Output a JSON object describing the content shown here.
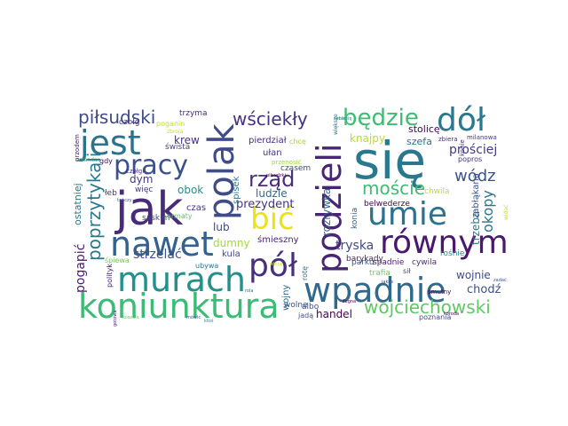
{
  "words": {
    "sie": {
      "text": "się",
      "color": "#2a788e"
    },
    "jak": {
      "text": "jak",
      "color": "#472c7a"
    },
    "jest": {
      "text": "jest",
      "color": "#2c728e"
    },
    "nawet": {
      "text": "nawet",
      "color": "#34618d"
    },
    "koniunktura": {
      "text": "koniunktura",
      "color": "#3bbb75"
    },
    "murach": {
      "text": "murach",
      "color": "#21918c"
    },
    "wpadnie": {
      "text": "wpadnie",
      "color": "#31688e"
    },
    "umie": {
      "text": "umie",
      "color": "#2c728e"
    },
    "rownym": {
      "text": "równym",
      "color": "#4a186c"
    },
    "dol": {
      "text": "dół",
      "color": "#2a788e"
    },
    "pol": {
      "text": "pół",
      "color": "#472f7d"
    },
    "polak": {
      "text": "polak",
      "color": "#3e4c8a"
    },
    "podzieli": {
      "text": "podzieli",
      "color": "#482475"
    },
    "bic": {
      "text": "bić",
      "color": "#e8e419"
    },
    "pracy": {
      "text": "pracy",
      "color": "#3b518b"
    },
    "bedzie": {
      "text": "będzie",
      "color": "#3fbc73"
    },
    "pilsudski": {
      "text": "piłsudski",
      "color": "#3e4a89"
    },
    "wsciekly": {
      "text": "wściekły",
      "color": "#46327e"
    },
    "rzad": {
      "text": "rząd",
      "color": "#472d7b"
    },
    "wojciechowski": {
      "text": "wojciechowski",
      "color": "#5ec962"
    },
    "poprzytykali": {
      "text": "poprzytykali",
      "color": "#2a788e"
    },
    "moscie": {
      "text": "moście",
      "color": "#3fbc73"
    },
    "wodz": {
      "text": "wódz",
      "color": "#3b528b"
    },
    "prosciej": {
      "text": "prościej",
      "color": "#443983"
    },
    "strzelac": {
      "text": "strzelać",
      "color": "#3b528b"
    },
    "prezydent": {
      "text": "prezydent",
      "color": "#46337f"
    },
    "rozrywka": {
      "text": "rozrywka",
      "color": "#31688e"
    },
    "tryska": {
      "text": "tryska",
      "color": "#3e4a89"
    },
    "handel": {
      "text": "handel",
      "color": "#440154"
    },
    "chodz": {
      "text": "chodź",
      "color": "#3b528b"
    },
    "wojnie": {
      "text": "wojnie",
      "color": "#3e4c8a"
    },
    "okopy": {
      "text": "okopy",
      "color": "#2c728e"
    },
    "pogapic": {
      "text": "pogapić",
      "color": "#481a6c"
    },
    "krew": {
      "text": "krew",
      "color": "#46327e"
    },
    "obok": {
      "text": "obok",
      "color": "#21918c"
    },
    "dym": {
      "text": "dym",
      "color": "#443983"
    },
    "lub": {
      "text": "lub",
      "color": "#3e4a89"
    },
    "dumny": {
      "text": "dumny",
      "color": "#a0da39"
    },
    "ludzie": {
      "text": "ludzie",
      "color": "#31688e"
    },
    "trzeba": {
      "text": "trzeba",
      "color": "#2a788e"
    },
    "ostatniej": {
      "text": "ostatniej",
      "color": "#2a788e"
    },
    "knajpy": {
      "text": "knajpy",
      "color": "#b5de2b"
    },
    "szefa": {
      "text": "szefa",
      "color": "#2c728e"
    },
    "stolice": {
      "text": "stolicę",
      "color": "#440154"
    },
    "pierdzial": {
      "text": "pierdział",
      "color": "#472d7b"
    },
    "ulan": {
      "text": "ułan",
      "color": "#46327e"
    },
    "czas": {
      "text": "czas",
      "color": "#46327e"
    },
    "spisek": {
      "text": "spisek",
      "color": "#2a788e"
    },
    "kula": {
      "text": "kula",
      "color": "#414487"
    },
    "smieszny": {
      "text": "śmieszny",
      "color": "#482475"
    },
    "wolne": {
      "text": "wolne",
      "color": "#3b528b"
    },
    "czasem": {
      "text": "czasem",
      "color": "#3e4a89"
    },
    "barykady": {
      "text": "barykady",
      "color": "#482475"
    },
    "parku": {
      "text": "parku",
      "color": "#3b518b"
    },
    "spadnie": {
      "text": "spadnie",
      "color": "#481a6c"
    },
    "cywila": {
      "text": "cywila",
      "color": "#472d7b"
    },
    "rosnie": {
      "text": "rośnie",
      "color": "#21918c"
    },
    "trafia": {
      "text": "trafia",
      "color": "#6ece58"
    },
    "belwederze": {
      "text": "belwederze",
      "color": "#440154"
    },
    "zablakana": {
      "text": "zabłąkana",
      "color": "#3b528b"
    },
    "chwila": {
      "text": "chwila",
      "color": "#b5de2b"
    },
    "czolg": {
      "text": "czołg",
      "color": "#443983"
    },
    "swista": {
      "text": "śwista",
      "color": "#414487"
    },
    "trzyma": {
      "text": "trzyma",
      "color": "#472d7b"
    },
    "wiec": {
      "text": "więc",
      "color": "#46327e"
    },
    "leb": {
      "text": "łeb",
      "color": "#46327e"
    },
    "saskim": {
      "text": "saskim",
      "color": "#3e4a89"
    },
    "armaty": {
      "text": "armaty",
      "color": "#5ec962"
    },
    "ubywa": {
      "text": "ubywa",
      "color": "#2a788e"
    },
    "spiewa": {
      "text": "śpiewa",
      "color": "#6ece58"
    },
    "polityk": {
      "text": "polityk",
      "color": "#482475"
    },
    "wojny": {
      "text": "wojny",
      "color": "#31688e"
    },
    "albo": {
      "text": "albo",
      "color": "#3e4a89"
    },
    "jada": {
      "text": "jadą",
      "color": "#3b528b"
    },
    "konia": {
      "text": "konia",
      "color": "#31688e"
    },
    "sil": {
      "text": "sił",
      "color": "#3e4a89"
    },
    "smutny": {
      "text": "smutny",
      "color": "#440154"
    },
    "poznania": {
      "text": "poznania",
      "color": "#3e4a89"
    },
    "popros": {
      "text": "popros",
      "color": "#46327e"
    },
    "zbiera": {
      "text": "zbiera",
      "color": "#46327e"
    },
    "milanowa": {
      "text": "milanowa",
      "color": "#443983"
    },
    "konie": {
      "text": "konie",
      "color": "#46327e"
    },
    "poganin": {
      "text": "poganin",
      "color": "#c2df23"
    },
    "zbroja": {
      "text": "zbroja",
      "color": "#c2df23"
    },
    "szmer": {
      "text": "szmer",
      "color": "#2c728e"
    },
    "przodem": {
      "text": "przodem",
      "color": "#481a6c"
    },
    "gdy": {
      "text": "gdy",
      "color": "#440154"
    },
    "czolgi": {
      "text": "czołgi",
      "color": "#46327e"
    },
    "sztandar": {
      "text": "sztandar",
      "color": "#35b779"
    },
    "chce": {
      "text": "chcę",
      "color": "#a0da39"
    },
    "przenosic": {
      "text": "przenosić",
      "color": "#a0da39"
    },
    "rote": {
      "text": "rotę",
      "color": "#2c728e"
    },
    "wieksze": {
      "text": "większe",
      "color": "#2c728e"
    },
    "pilsudzki": {
      "text": "piłsudzki",
      "color": "#440154"
    },
    "wloce": {
      "text": "włóce",
      "color": "#c2df23"
    },
    "mowie": {
      "text": "mówię",
      "color": "#21918c"
    },
    "rola": {
      "text": "rola",
      "color": "#2c728e"
    },
    "jakze": {
      "text": "jakże",
      "color": "#3b528b"
    },
    "zegna": {
      "text": "żegna",
      "color": "#440154"
    },
    "tanczy": {
      "text": "tańczy",
      "color": "#3b528b"
    },
    "koroda": {
      "text": "koroda",
      "color": "#440154"
    },
    "koszula": {
      "text": "koszula",
      "color": "#5ec962"
    },
    "mowic": {
      "text": "mówić",
      "color": "#3b528b"
    },
    "ktos": {
      "text": "ktoś",
      "color": "#21918c"
    },
    "zadac": {
      "text": "zadać",
      "color": "#3b528b"
    },
    "sobie": {
      "text": "sobie",
      "color": "#21918c"
    },
    "widac": {
      "text": "widać",
      "color": "#c2df23"
    },
    "gotowa": {
      "text": "gotowa",
      "color": "#482475"
    }
  }
}
